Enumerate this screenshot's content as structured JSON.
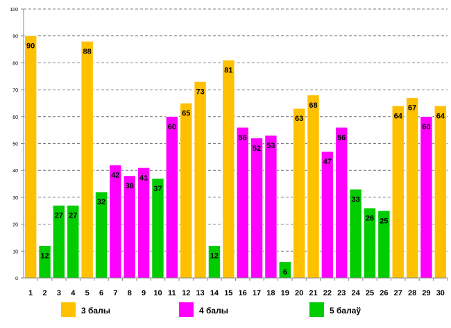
{
  "chart_data": {
    "type": "bar",
    "title": "",
    "xlabel": "",
    "ylabel": "",
    "ylim": [
      0,
      100
    ],
    "yticks": [
      0,
      10,
      20,
      30,
      40,
      50,
      60,
      70,
      80,
      90,
      100
    ],
    "grid": "horizontal dashed",
    "legend_placement": "bottom",
    "categories": [
      "1",
      "2",
      "3",
      "4",
      "5",
      "6",
      "7",
      "8",
      "9",
      "10",
      "11",
      "12",
      "13",
      "14",
      "15",
      "16",
      "17",
      "18",
      "19",
      "20",
      "21",
      "22",
      "23",
      "24",
      "25",
      "26",
      "27",
      "28",
      "29",
      "30"
    ],
    "values": [
      90,
      12,
      27,
      27,
      88,
      32,
      42,
      38,
      41,
      37,
      60,
      65,
      73,
      12,
      81,
      56,
      52,
      53,
      6,
      63,
      68,
      47,
      56,
      33,
      26,
      25,
      64,
      67,
      60,
      64
    ],
    "groups": [
      "3",
      "5",
      "5",
      "5",
      "3",
      "5",
      "4",
      "4",
      "4",
      "5",
      "4",
      "3",
      "3",
      "5",
      "3",
      "4",
      "4",
      "4",
      "5",
      "3",
      "3",
      "4",
      "4",
      "5",
      "5",
      "5",
      "3",
      "3",
      "4",
      "3"
    ],
    "legend": [
      {
        "key": "3",
        "name": "3 балы",
        "color": "#FFC000"
      },
      {
        "key": "4",
        "name": "4 балы",
        "color": "#FF00FF"
      },
      {
        "key": "5",
        "name": "5 балаў",
        "color": "#00CC00"
      }
    ]
  }
}
